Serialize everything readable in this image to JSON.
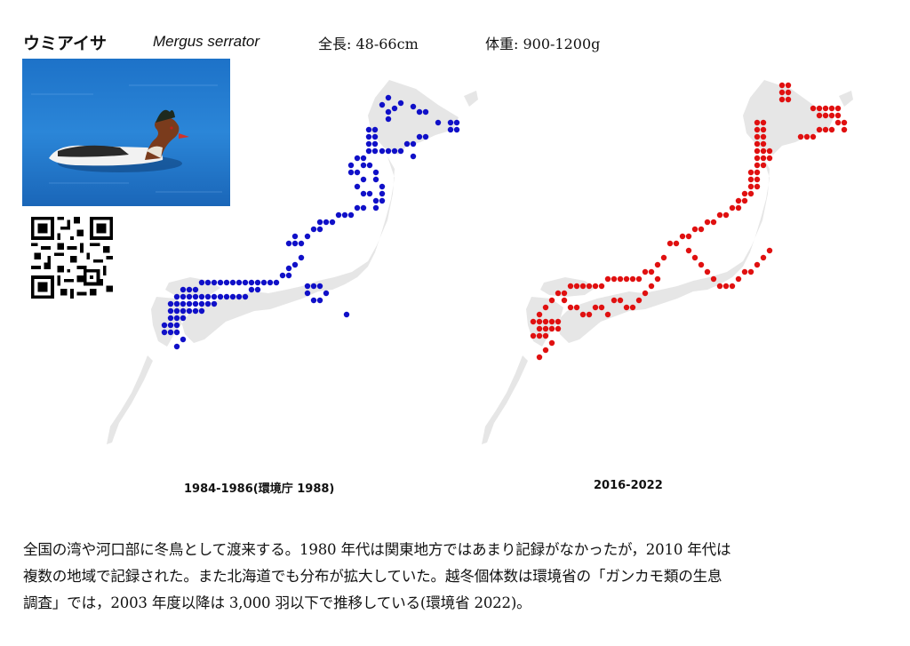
{
  "header": {
    "name_ja": "ウミアイサ",
    "name_scientific": "Mergus serrator",
    "length": "全長: 48-66cm",
    "weight": "体重: 900-1200g"
  },
  "maps": [
    {
      "caption": "1984-1986(環境庁 1988)",
      "dot_color": "#1010c8"
    },
    {
      "caption": "2016-2022",
      "dot_color": "#e01010"
    }
  ],
  "description": [
    "全国の湾や河口部に冬鳥として渡来する。1980 年代は関東地方ではあまり記録がなかったが，2010 年代は",
    "複数の地域で記録された。また北海道でも分布が拡大していた。越冬個体数は環境省の「ガンカモ類の生息",
    "調査」では，2003 年度以降は 3,000 羽以下で推移している(環境省 2022)。"
  ]
}
